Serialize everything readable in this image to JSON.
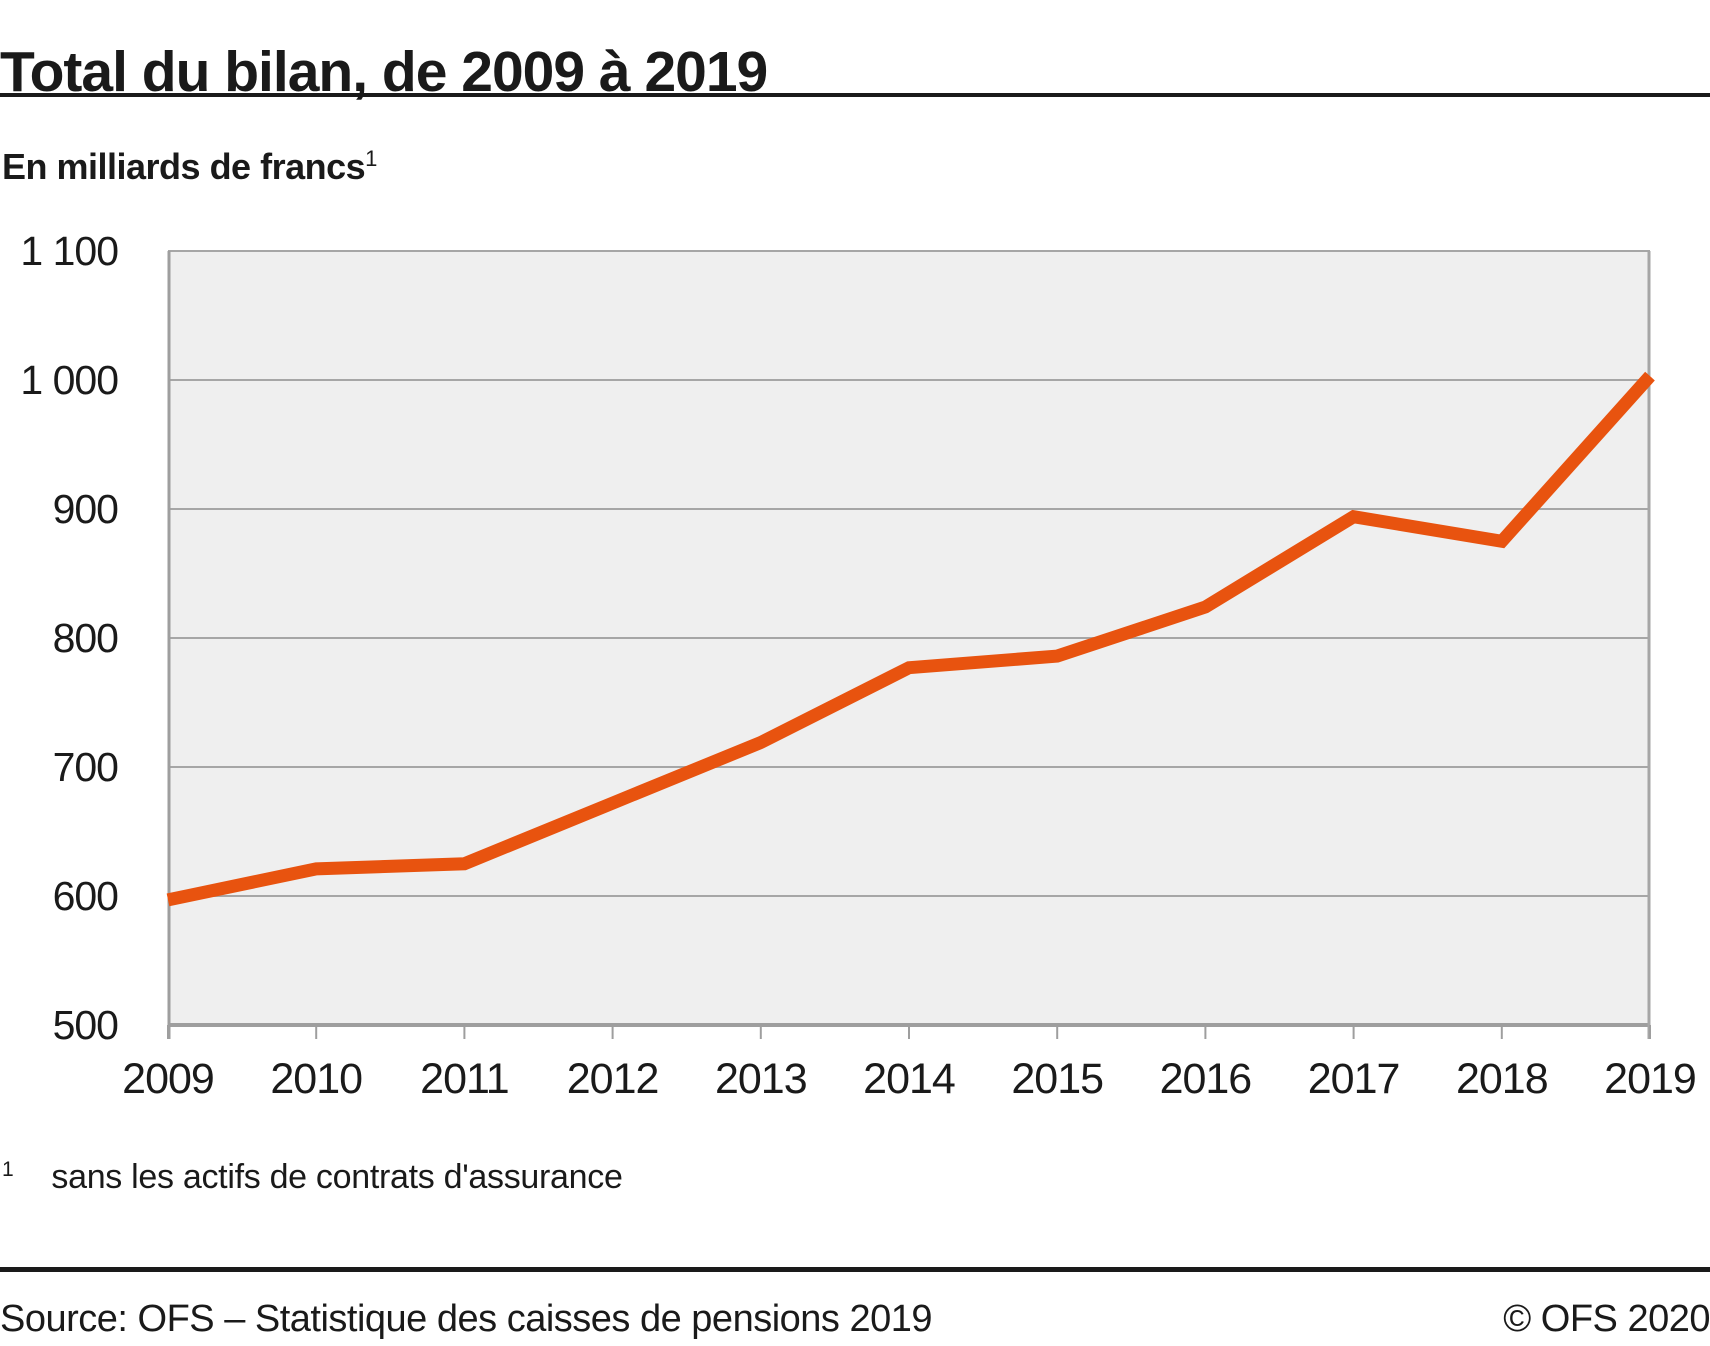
{
  "header": {
    "title": "Total du bilan, de 2009 à 2019"
  },
  "subtitle": {
    "text": "En milliards de francs",
    "footnote_marker": "1"
  },
  "footnote": {
    "marker": "1",
    "text": "sans les actifs de contrats d'assurance"
  },
  "footer": {
    "source": "Source: OFS – Statistique des caisses de pensions 2019",
    "copyright": "© OFS 2020"
  },
  "colors": {
    "line": "#e8530f",
    "plot_background": "#efefef",
    "gridline": "#a6a6a6",
    "axis": "#9e9e9e",
    "text": "#1a1a1a"
  },
  "chart_data": {
    "type": "line",
    "title": "Total du bilan, de 2009 à 2019",
    "ylabel": "En milliards de francs",
    "x": [
      2009,
      2010,
      2011,
      2012,
      2013,
      2014,
      2015,
      2016,
      2017,
      2018,
      2019
    ],
    "x_labels": [
      "2009",
      "2010",
      "2011",
      "2012",
      "2013",
      "2014",
      "2015",
      "2016",
      "2017",
      "2018",
      "2019"
    ],
    "series": [
      {
        "name": "Total du bilan (en milliards de francs)",
        "values": [
          597,
          621,
          625,
          672,
          719,
          777,
          786,
          824,
          894,
          875,
          1003
        ]
      }
    ],
    "ylim": [
      500,
      1100
    ],
    "yticks": [
      500,
      600,
      700,
      800,
      900,
      1000,
      1100
    ],
    "ytick_labels": [
      "500",
      "600",
      "700",
      "800",
      "900",
      "1 000",
      "1 100"
    ],
    "grid": true,
    "legend": false
  }
}
